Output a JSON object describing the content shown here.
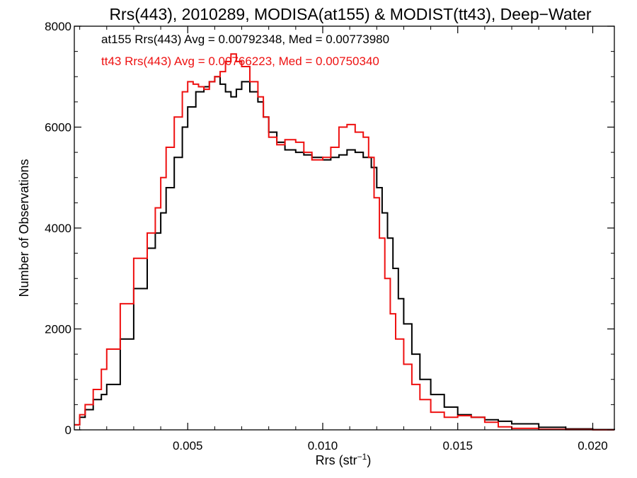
{
  "chart_data": {
    "type": "line",
    "title": "Rrs(443), 2010289, MODISA(at155) & MODIST(tt43), Deep−Water",
    "xlabel": "Rrs (str",
    "xlabel_sup": "−1",
    "xlabel_close": ")",
    "ylabel": "Number of Observations",
    "xlim": [
      0.0008,
      0.0208
    ],
    "ylim": [
      0,
      8000
    ],
    "x_ticks": [
      0.005,
      0.01,
      0.015,
      0.02
    ],
    "x_tick_labels": [
      "0.005",
      "0.010",
      "0.015",
      "0.020"
    ],
    "y_ticks": [
      0,
      2000,
      4000,
      6000,
      8000
    ],
    "y_tick_labels": [
      "0",
      "2000",
      "4000",
      "6000",
      "8000"
    ],
    "grid": false,
    "annotations": [
      {
        "text": "at155 Rrs(443) Avg = 0.00792348, Med = 0.00773980",
        "color": "#000000"
      },
      {
        "text": "tt43 Rrs(443) Avg = 0.00766223, Med = 0.00750340",
        "color": "#ee1111"
      }
    ],
    "series": [
      {
        "color": "#000000",
        "x": [
          0.0008,
          0.001,
          0.0012,
          0.0015,
          0.0018,
          0.002,
          0.0025,
          0.003,
          0.0035,
          0.0038,
          0.004,
          0.0042,
          0.0045,
          0.0048,
          0.005,
          0.0053,
          0.0056,
          0.0058,
          0.006,
          0.0062,
          0.0064,
          0.0066,
          0.0068,
          0.007,
          0.0073,
          0.0076,
          0.0078,
          0.008,
          0.0083,
          0.0086,
          0.009,
          0.0093,
          0.0096,
          0.01,
          0.0103,
          0.0106,
          0.0109,
          0.0112,
          0.0115,
          0.0118,
          0.012,
          0.0122,
          0.0124,
          0.0126,
          0.0128,
          0.013,
          0.0133,
          0.0136,
          0.014,
          0.0145,
          0.015,
          0.0155,
          0.016,
          0.0165,
          0.017,
          0.018,
          0.019,
          0.02,
          0.0208
        ],
        "y": [
          100,
          250,
          400,
          600,
          700,
          900,
          1800,
          2800,
          3600,
          3900,
          4300,
          4800,
          5400,
          6000,
          6400,
          6700,
          6800,
          6900,
          7000,
          6850,
          6700,
          6600,
          6750,
          6900,
          6700,
          6500,
          6200,
          5900,
          5700,
          5550,
          5500,
          5450,
          5400,
          5350,
          5400,
          5450,
          5550,
          5500,
          5400,
          5200,
          4800,
          4300,
          3800,
          3200,
          2600,
          2100,
          1500,
          1000,
          700,
          450,
          300,
          250,
          200,
          170,
          120,
          50,
          20,
          5,
          0
        ]
      },
      {
        "color": "#ee1111",
        "x": [
          0.0008,
          0.001,
          0.0012,
          0.0015,
          0.0018,
          0.002,
          0.0025,
          0.003,
          0.0035,
          0.0038,
          0.004,
          0.0042,
          0.0045,
          0.0048,
          0.005,
          0.0052,
          0.0054,
          0.0056,
          0.0058,
          0.006,
          0.0062,
          0.0064,
          0.0066,
          0.0068,
          0.007,
          0.0073,
          0.0076,
          0.0078,
          0.008,
          0.0083,
          0.0086,
          0.009,
          0.0093,
          0.0096,
          0.01,
          0.0103,
          0.0106,
          0.0109,
          0.0112,
          0.0115,
          0.0117,
          0.0119,
          0.0121,
          0.0123,
          0.0125,
          0.0127,
          0.013,
          0.0133,
          0.0136,
          0.014,
          0.0145,
          0.015,
          0.0155,
          0.016,
          0.0165,
          0.017,
          0.018,
          0.019,
          0.02,
          0.0208
        ],
        "y": [
          100,
          300,
          500,
          800,
          1200,
          1600,
          2500,
          3400,
          3900,
          4400,
          5000,
          5600,
          6200,
          6700,
          6900,
          6850,
          6800,
          6750,
          6900,
          7000,
          7100,
          7300,
          7450,
          7300,
          7200,
          6900,
          6600,
          6200,
          5800,
          5650,
          5750,
          5700,
          5500,
          5350,
          5400,
          5600,
          6000,
          6050,
          5900,
          5800,
          5400,
          4600,
          3800,
          3000,
          2300,
          1800,
          1300,
          900,
          600,
          350,
          250,
          280,
          250,
          150,
          60,
          30,
          10,
          5,
          0,
          0
        ]
      }
    ]
  }
}
